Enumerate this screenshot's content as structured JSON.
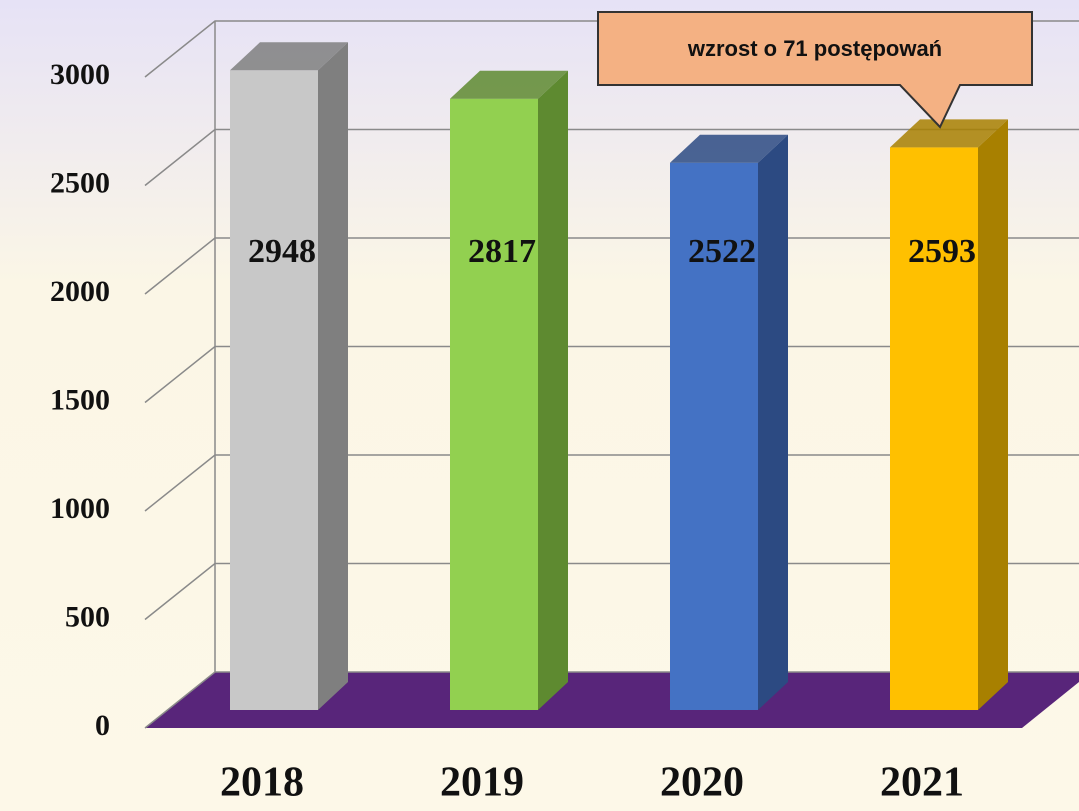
{
  "chart_data": {
    "type": "bar3d",
    "categories": [
      "2018",
      "2019",
      "2020",
      "2021"
    ],
    "values": [
      2948,
      2817,
      2522,
      2593
    ],
    "colors": [
      "#c8c8c8",
      "#92d050",
      "#4472c4",
      "#ffc000"
    ],
    "side_colors": [
      "#7f7f7f",
      "#5e8a30",
      "#2c4a82",
      "#a88000"
    ],
    "floor_color": "#58257a",
    "ylim": [
      0,
      3000
    ],
    "yticks": [
      0,
      500,
      1000,
      1500,
      2000,
      2500,
      3000
    ],
    "grid": true,
    "annotation": "wzrost o 71 postępowań"
  }
}
